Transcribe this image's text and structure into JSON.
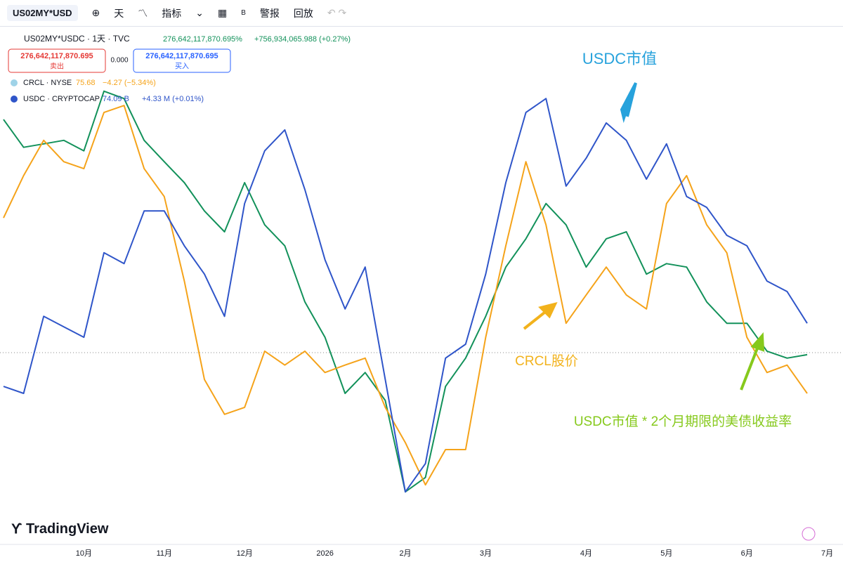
{
  "toolbar": {
    "symbol": "US02MY*USD",
    "interval": "天",
    "indicators": "指标",
    "b": "B",
    "alert": "警报",
    "replay": "回放"
  },
  "legend": {
    "last": "276,642,117,870.695%",
    "change": "+756,934,065.988 (+0.27%)",
    "sell_price": "276,642,117,870.695",
    "sell": "卖出",
    "spread": "0.000",
    "buy_price": "276,642,117,870.695",
    "buy": "买入",
    "crcl_last": "75.68",
    "crcl_change": "−4.27 (−5.34%)",
    "usdc_last": "74.09 B",
    "usdc_change": "+4.33 M (+0.01%)"
  },
  "watermark": "TradingView",
  "chart_data": {
    "type": "line",
    "categories": [
      null,
      null,
      null,
      null,
      "10月",
      null,
      null,
      null,
      "11月",
      null,
      null,
      null,
      "12月",
      null,
      null,
      null,
      "2026",
      null,
      null,
      null,
      "2月",
      null,
      null,
      null,
      "3月",
      null,
      null,
      null,
      null,
      "4月",
      null,
      null,
      null,
      "5月",
      null,
      null,
      null,
      "6月",
      null,
      null,
      null,
      "7月"
    ],
    "series": [
      {
        "name": "US02MY*USDC · 1天 · TVC",
        "color": "#12915a",
        "values": [
          88.7,
          82.3,
          83.1,
          83.9,
          81.5,
          95.2,
          93.5,
          83.9,
          79.0,
          74.2,
          67.7,
          62.9,
          74.2,
          64.5,
          59.7,
          46.8,
          38.7,
          25.8,
          30.6,
          24.2,
          3.2,
          6.5,
          27.4,
          33.9,
          43.5,
          54.8,
          61.3,
          69.4,
          64.5,
          54.8,
          61.3,
          62.9,
          53.2,
          55.6,
          54.8,
          46.8,
          41.9,
          41.9,
          35.5,
          33.9,
          34.7,
          null
        ]
      },
      {
        "name": "CRCL · NYSE",
        "color": "#f5a31a",
        "values": [
          66.1,
          75.8,
          83.9,
          79.0,
          77.4,
          90.3,
          91.9,
          77.4,
          71.0,
          51.6,
          29.0,
          21.0,
          22.6,
          35.5,
          32.3,
          35.5,
          30.6,
          32.3,
          33.9,
          22.6,
          14.5,
          4.8,
          12.9,
          12.9,
          38.7,
          59.7,
          79.0,
          64.5,
          41.9,
          48.4,
          54.8,
          48.4,
          45.2,
          69.4,
          75.8,
          64.5,
          58.1,
          38.7,
          30.6,
          32.3,
          25.8,
          null
        ]
      },
      {
        "name": "USDC · CRYPTOCAP",
        "color": "#2f55c9",
        "values": [
          27.4,
          25.8,
          43.5,
          41.1,
          38.7,
          58.1,
          55.6,
          67.7,
          67.7,
          59.7,
          53.2,
          43.5,
          69.4,
          81.5,
          86.3,
          72.6,
          56.5,
          45.2,
          54.8,
          29.0,
          3.2,
          9.7,
          33.9,
          37.1,
          53.2,
          74.2,
          90.3,
          93.5,
          73.4,
          79.8,
          87.9,
          83.9,
          75.0,
          83.1,
          71.0,
          68.5,
          62.1,
          59.7,
          51.6,
          49.2,
          41.9,
          null
        ]
      }
    ],
    "ylim": [
      0,
      100
    ],
    "annotations": [
      {
        "text": "USDC市值",
        "color": "#27a2dc"
      },
      {
        "text": "CRCL股价",
        "color": "#f2b21c"
      },
      {
        "text": "USDC市值 * 2个月期限的美债收益率",
        "color": "#86c91c"
      }
    ]
  }
}
